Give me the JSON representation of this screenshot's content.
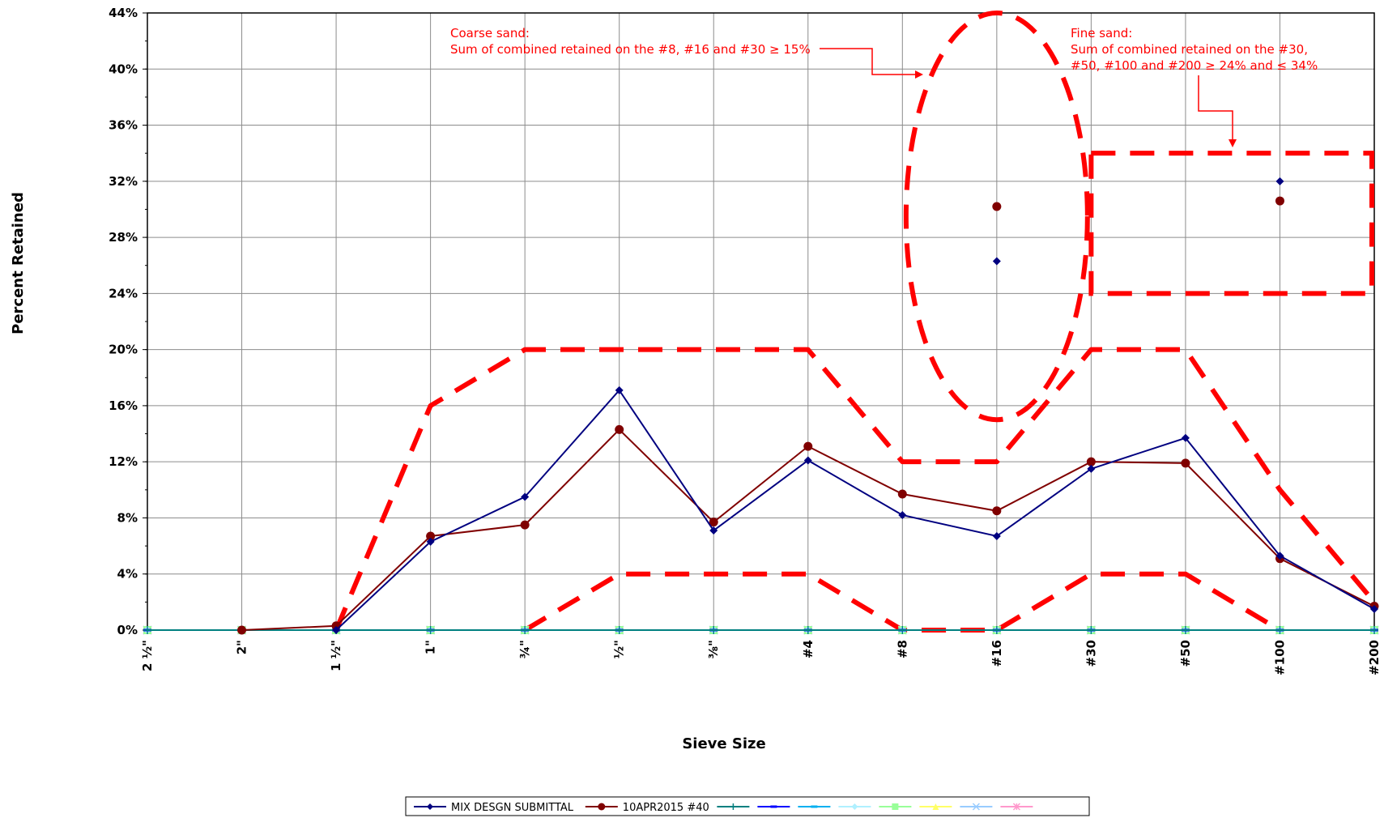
{
  "chart_data": {
    "type": "line",
    "xlabel": "Sieve Size",
    "ylabel": "Percent Retained",
    "ylim": [
      0,
      44
    ],
    "y_tick_step": 4,
    "y_ticks": [
      "0%",
      "4%",
      "8%",
      "12%",
      "16%",
      "20%",
      "24%",
      "28%",
      "32%",
      "36%",
      "40%",
      "44%"
    ],
    "grid": true,
    "legend_placement": "bottom",
    "categories": [
      "2 ½\"",
      "2\"",
      "1 ½\"",
      "1\"",
      "¾\"",
      "½\"",
      "⅜\"",
      "#4",
      "#8",
      "#16",
      "#30",
      "#50",
      "#100",
      "#200"
    ],
    "series": [
      {
        "name": "MIX DESGN SUBMITTAL",
        "color": "#000080",
        "marker": "diamond",
        "values": [
          null,
          null,
          0.0,
          6.3,
          9.5,
          17.1,
          7.1,
          12.1,
          8.2,
          6.7,
          11.5,
          13.7,
          5.3,
          1.5
        ],
        "points": [
          {
            "x": "#16",
            "y": 26.3
          },
          {
            "x": "#100",
            "y": 32.0
          }
        ]
      },
      {
        "name": "10APR2015 #40",
        "color": "#800000",
        "marker": "circle",
        "values": [
          null,
          0.0,
          0.3,
          6.7,
          7.5,
          14.3,
          7.7,
          13.1,
          9.7,
          8.5,
          12.0,
          11.9,
          5.1,
          1.7
        ],
        "points": [
          {
            "x": "#16",
            "y": 30.2
          },
          {
            "x": "#100",
            "y": 30.6
          }
        ]
      },
      {
        "color": "#008080",
        "marker": "plus",
        "values": [
          0,
          0,
          0,
          0,
          0,
          0,
          0,
          0,
          0,
          0,
          0,
          0,
          0,
          0
        ]
      },
      {
        "color": "#0000ff",
        "marker": "dash",
        "values": [
          0,
          0,
          0,
          0,
          0,
          0,
          0,
          0,
          0,
          0,
          0,
          0,
          0,
          0
        ]
      },
      {
        "color": "#00b0f0",
        "marker": "dash",
        "values": [
          0,
          0,
          0,
          0,
          0,
          0,
          0,
          0,
          0,
          0,
          0,
          0,
          0,
          0
        ]
      },
      {
        "color": "#b0f0ff",
        "marker": "diamond",
        "values": [
          0,
          0,
          0,
          0,
          0,
          0,
          0,
          0,
          0,
          0,
          0,
          0,
          0,
          0
        ]
      },
      {
        "color": "#99ff99",
        "marker": "square",
        "values": [
          0,
          0,
          0,
          0,
          0,
          0,
          0,
          0,
          0,
          0,
          0,
          0,
          0,
          0
        ]
      },
      {
        "color": "#ffff66",
        "marker": "triangle",
        "values": [
          0,
          0,
          0,
          0,
          0,
          0,
          0,
          0,
          0,
          0,
          0,
          0,
          0,
          0
        ]
      },
      {
        "color": "#99ccff",
        "marker": "x",
        "values": [
          0,
          0,
          0,
          0,
          0,
          0,
          0,
          0,
          0,
          0,
          0,
          0,
          0,
          0
        ]
      },
      {
        "color": "#ff99cc",
        "marker": "star",
        "values": [
          0,
          0,
          0,
          0,
          0,
          0,
          0,
          0,
          0,
          0,
          0,
          0,
          0,
          0
        ]
      }
    ],
    "specification_limits": {
      "color": "#ff0000",
      "upper": [
        null,
        null,
        0,
        16,
        20,
        20,
        20,
        20,
        12,
        12,
        20,
        20,
        10,
        2
      ],
      "lower": [
        null,
        null,
        null,
        null,
        0,
        4,
        4,
        4,
        0,
        0,
        4,
        4,
        0,
        null
      ]
    },
    "annotations": [
      {
        "name": "coarse-sand",
        "lines": [
          "Coarse sand:",
          "Sum of combined retained on the #8, #16 and #30 ≥ 15%"
        ],
        "color": "#ff0000"
      },
      {
        "name": "fine-sand",
        "lines": [
          "Fine sand:",
          "Sum of combined retained on the #30,",
          "#50, #100 and #200 ≥ 24% and ≤  34%"
        ],
        "color": "#ff0000"
      }
    ],
    "highlight_regions": [
      {
        "shape": "ellipse",
        "around": "#16",
        "y_range": [
          15,
          44
        ]
      },
      {
        "shape": "rectangle",
        "x_range": [
          "#30",
          "#200"
        ],
        "y_range": [
          24,
          34
        ]
      }
    ]
  }
}
